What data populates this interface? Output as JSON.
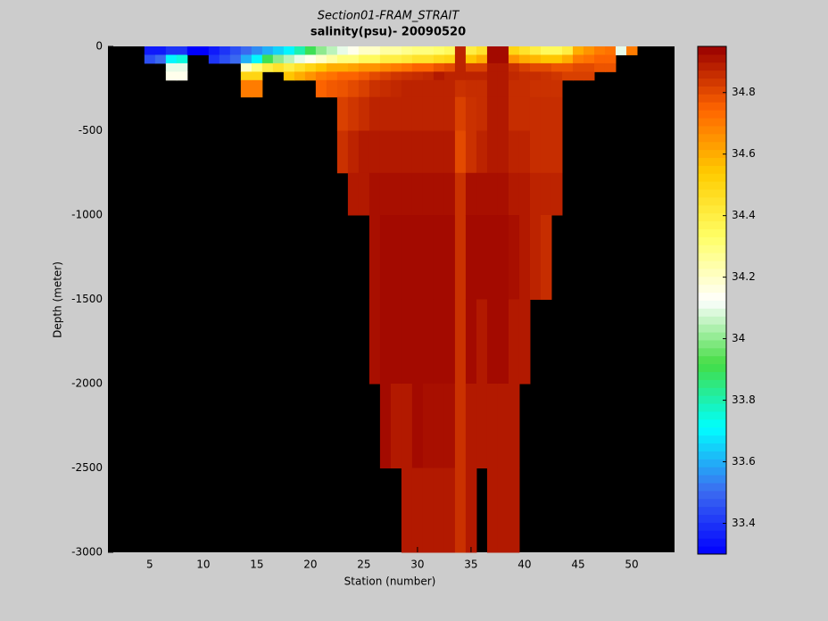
{
  "chart_data": {
    "type": "heatmap",
    "title": "Section01-FRAM_STRAIT",
    "subtitle": "salinity(psu)- 20090520",
    "x_label": "Station (number)",
    "y_label": "Depth (meter)",
    "xlim": [
      1.1,
      54
    ],
    "xticks": [
      5,
      10,
      15,
      20,
      25,
      30,
      35,
      40,
      45,
      50
    ],
    "ylim": [
      -3000,
      0
    ],
    "yticks": [
      -3000,
      -2500,
      -2000,
      -1500,
      -1000,
      -500,
      0
    ],
    "background": "#000000",
    "colormap": [
      "#0000ff",
      "#3c6cf0",
      "#00ffff",
      "#44dd44",
      "#ffffff",
      "#ffff66",
      "#ffcc00",
      "#ff6600",
      "#990000"
    ],
    "clim": [
      33.3,
      34.95
    ],
    "cticks": [
      33.4,
      33.6,
      33.8,
      34,
      34.2,
      34.4,
      34.6,
      34.8
    ],
    "depth_edges": [
      0,
      -50,
      -100,
      -150,
      -200,
      -300,
      -500,
      -750,
      -1000,
      -1500,
      -2000,
      -2500,
      -3000
    ],
    "stations": [
      5,
      6,
      7,
      8,
      9,
      10,
      11,
      12,
      13,
      14,
      15,
      16,
      17,
      18,
      19,
      20,
      21,
      22,
      23,
      24,
      25,
      26,
      27,
      28,
      29,
      30,
      31,
      32,
      33,
      34,
      35,
      36,
      37,
      38,
      39,
      40,
      41,
      42,
      43,
      44,
      45,
      46,
      47,
      48,
      49,
      50
    ],
    "salinity": [
      [
        33.35,
        33.45,
        null,
        null,
        null,
        null,
        null,
        null,
        null,
        null,
        null,
        null
      ],
      [
        33.35,
        33.5,
        null,
        null,
        null,
        null,
        null,
        null,
        null,
        null,
        null,
        null
      ],
      [
        33.4,
        33.7,
        34.1,
        34.15,
        null,
        null,
        null,
        null,
        null,
        null,
        null,
        null
      ],
      [
        33.4,
        33.75,
        34.1,
        34.15,
        null,
        null,
        null,
        null,
        null,
        null,
        null,
        null
      ],
      [
        33.3,
        null,
        null,
        null,
        null,
        null,
        null,
        null,
        null,
        null,
        null,
        null
      ],
      [
        33.3,
        null,
        null,
        null,
        null,
        null,
        null,
        null,
        null,
        null,
        null,
        null
      ],
      [
        33.35,
        33.4,
        null,
        null,
        null,
        null,
        null,
        null,
        null,
        null,
        null,
        null
      ],
      [
        33.4,
        33.45,
        null,
        null,
        null,
        null,
        null,
        null,
        null,
        null,
        null,
        null
      ],
      [
        33.45,
        33.5,
        null,
        null,
        null,
        null,
        null,
        null,
        null,
        null,
        null,
        null
      ],
      [
        33.5,
        33.6,
        34.2,
        34.5,
        34.7,
        null,
        null,
        null,
        null,
        null,
        null,
        null
      ],
      [
        33.55,
        33.7,
        34.3,
        34.5,
        34.7,
        null,
        null,
        null,
        null,
        null,
        null,
        null
      ],
      [
        33.6,
        33.9,
        34.4,
        null,
        null,
        null,
        null,
        null,
        null,
        null,
        null,
        null
      ],
      [
        33.65,
        34.0,
        34.45,
        null,
        null,
        null,
        null,
        null,
        null,
        null,
        null,
        null
      ],
      [
        33.7,
        34.05,
        34.4,
        34.55,
        null,
        null,
        null,
        null,
        null,
        null,
        null,
        null
      ],
      [
        33.8,
        34.1,
        34.45,
        34.6,
        null,
        null,
        null,
        null,
        null,
        null,
        null,
        null
      ],
      [
        33.9,
        34.15,
        34.5,
        34.65,
        null,
        null,
        null,
        null,
        null,
        null,
        null,
        null
      ],
      [
        34.0,
        34.2,
        34.55,
        34.7,
        34.75,
        null,
        null,
        null,
        null,
        null,
        null,
        null
      ],
      [
        34.05,
        34.25,
        34.6,
        34.72,
        34.77,
        null,
        null,
        null,
        null,
        null,
        null,
        null
      ],
      [
        34.1,
        34.3,
        34.6,
        34.75,
        34.78,
        34.82,
        34.85,
        null,
        null,
        null,
        null,
        null
      ],
      [
        34.15,
        34.3,
        34.62,
        34.75,
        34.8,
        34.84,
        34.88,
        34.9,
        null,
        null,
        null,
        null
      ],
      [
        34.2,
        34.35,
        34.65,
        34.77,
        34.82,
        34.86,
        34.9,
        34.9,
        null,
        null,
        null,
        null
      ],
      [
        34.2,
        34.35,
        34.65,
        34.8,
        34.85,
        34.88,
        34.9,
        34.92,
        34.92,
        34.92,
        null,
        null
      ],
      [
        34.25,
        34.4,
        34.68,
        34.82,
        34.86,
        34.88,
        34.9,
        34.92,
        34.93,
        34.93,
        34.93,
        null
      ],
      [
        34.25,
        34.4,
        34.7,
        34.84,
        34.87,
        34.88,
        34.9,
        34.92,
        34.93,
        34.93,
        34.9,
        null
      ],
      [
        34.28,
        34.42,
        34.72,
        34.85,
        34.88,
        34.88,
        34.9,
        34.92,
        34.93,
        34.93,
        34.9,
        34.9
      ],
      [
        34.3,
        34.45,
        34.75,
        34.86,
        34.88,
        34.88,
        34.9,
        34.92,
        34.93,
        34.93,
        34.93,
        34.9
      ],
      [
        34.3,
        34.45,
        34.75,
        34.87,
        34.88,
        34.88,
        34.9,
        34.92,
        34.93,
        34.93,
        34.92,
        34.9
      ],
      [
        34.32,
        34.48,
        34.78,
        34.9,
        34.88,
        34.88,
        34.9,
        34.92,
        34.93,
        34.93,
        34.92,
        34.9
      ],
      [
        34.35,
        34.5,
        34.8,
        34.88,
        34.88,
        34.88,
        34.9,
        34.92,
        34.93,
        34.93,
        34.92,
        34.9
      ],
      [
        34.88,
        34.88,
        34.88,
        34.88,
        34.85,
        34.82,
        34.8,
        34.85,
        34.85,
        34.85,
        34.85,
        34.85
      ],
      [
        34.4,
        34.55,
        34.82,
        34.88,
        34.86,
        34.85,
        34.85,
        34.92,
        34.93,
        34.93,
        34.9,
        34.9
      ],
      [
        34.45,
        34.6,
        34.82,
        34.88,
        34.86,
        34.86,
        34.88,
        34.92,
        34.93,
        34.9,
        34.9,
        null
      ],
      [
        34.93,
        34.93,
        34.9,
        34.9,
        34.9,
        34.9,
        34.9,
        34.92,
        34.93,
        34.93,
        34.9,
        34.9
      ],
      [
        34.93,
        34.93,
        34.9,
        34.9,
        34.9,
        34.9,
        34.9,
        34.92,
        34.93,
        34.93,
        34.9,
        34.9
      ],
      [
        34.5,
        34.65,
        34.85,
        34.87,
        34.86,
        34.86,
        34.88,
        34.9,
        34.92,
        34.9,
        34.9,
        34.9
      ],
      [
        34.45,
        34.6,
        34.82,
        34.86,
        34.86,
        34.86,
        34.88,
        34.9,
        34.9,
        34.9,
        null,
        null
      ],
      [
        34.4,
        34.58,
        34.8,
        34.86,
        34.85,
        34.86,
        34.86,
        34.88,
        34.88,
        null,
        null,
        null
      ],
      [
        34.35,
        34.55,
        34.8,
        34.85,
        34.85,
        34.86,
        34.86,
        34.88,
        34.86,
        null,
        null,
        null
      ],
      [
        34.35,
        34.55,
        34.78,
        34.84,
        34.85,
        34.86,
        34.86,
        34.88,
        null,
        null,
        null,
        null
      ],
      [
        34.4,
        34.6,
        34.78,
        34.82,
        null,
        null,
        null,
        null,
        null,
        null,
        null,
        null
      ],
      [
        34.6,
        34.7,
        34.8,
        34.82,
        null,
        null,
        null,
        null,
        null,
        null,
        null,
        null
      ],
      [
        34.65,
        34.72,
        34.8,
        34.82,
        null,
        null,
        null,
        null,
        null,
        null,
        null,
        null
      ],
      [
        34.7,
        34.75,
        34.78,
        null,
        null,
        null,
        null,
        null,
        null,
        null,
        null,
        null
      ],
      [
        34.72,
        34.75,
        34.78,
        null,
        null,
        null,
        null,
        null,
        null,
        null,
        null,
        null
      ],
      [
        34.1,
        null,
        null,
        null,
        null,
        null,
        null,
        null,
        null,
        null,
        null,
        null
      ],
      [
        34.7,
        null,
        null,
        null,
        null,
        null,
        null,
        null,
        null,
        null,
        null,
        null
      ]
    ]
  }
}
